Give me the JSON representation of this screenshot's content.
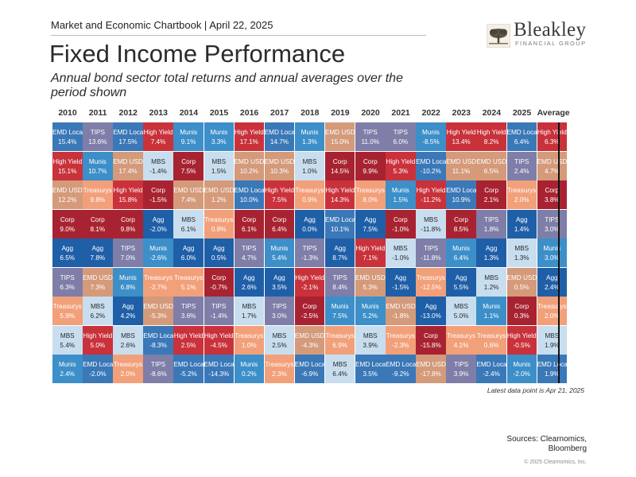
{
  "header": {
    "chartbook": "Market and Economic Chartbook | April 22, 2025",
    "title": "Fixed Income Performance",
    "subtitle": "Annual bond sector total returns and annual averages over the period shown"
  },
  "logo": {
    "name": "Bleakley",
    "tagline": "FINANCIAL GROUP"
  },
  "colors": {
    "EMD Local": "#3a78b8",
    "TIPS": "#7e7ea8",
    "High Yield": "#c9323b",
    "Munis": "#3c8fc8",
    "Corp": "#a82331",
    "MBS": "#c8deef",
    "EMD USD": "#d49a7a",
    "Treasurys": "#f2a07a",
    "Agg": "#1f5fa8"
  },
  "chart_data": {
    "type": "table",
    "title": "Fixed Income Performance",
    "columns": [
      "2010",
      "2011",
      "2012",
      "2013",
      "2014",
      "2015",
      "2016",
      "2017",
      "2018",
      "2019",
      "2020",
      "2021",
      "2022",
      "2023",
      "2024",
      "2025",
      "Average"
    ],
    "ranked_returns": [
      [
        [
          "EMD Local",
          "15.4%"
        ],
        [
          "High Yield",
          "15.1%"
        ],
        [
          "EMD USD",
          "12.2%"
        ],
        [
          "Corp",
          "9.0%"
        ],
        [
          "Agg",
          "6.5%"
        ],
        [
          "TIPS",
          "6.3%"
        ],
        [
          "Treasurys",
          "5.9%"
        ],
        [
          "MBS",
          "5.4%"
        ],
        [
          "Munis",
          "2.4%"
        ]
      ],
      [
        [
          "TIPS",
          "13.6%"
        ],
        [
          "Munis",
          "10.7%"
        ],
        [
          "Treasurys",
          "9.8%"
        ],
        [
          "Corp",
          "8.1%"
        ],
        [
          "Agg",
          "7.8%"
        ],
        [
          "EMD USD",
          "7.3%"
        ],
        [
          "MBS",
          "6.2%"
        ],
        [
          "High Yield",
          "5.0%"
        ],
        [
          "EMD Local",
          "-2.0%"
        ]
      ],
      [
        [
          "EMD Local",
          "17.5%"
        ],
        [
          "EMD USD",
          "17.4%"
        ],
        [
          "High Yield",
          "15.8%"
        ],
        [
          "Corp",
          "9.8%"
        ],
        [
          "TIPS",
          "7.0%"
        ],
        [
          "Munis",
          "6.8%"
        ],
        [
          "Agg",
          "4.2%"
        ],
        [
          "MBS",
          "2.6%"
        ],
        [
          "Treasurys",
          "2.0%"
        ]
      ],
      [
        [
          "High Yield",
          "7.4%"
        ],
        [
          "MBS",
          "-1.4%"
        ],
        [
          "Corp",
          "-1.5%"
        ],
        [
          "Agg",
          "-2.0%"
        ],
        [
          "Munis",
          "-2.6%"
        ],
        [
          "Treasurys",
          "-2.7%"
        ],
        [
          "EMD USD",
          "-5.3%"
        ],
        [
          "EMD Local",
          "-8.3%"
        ],
        [
          "TIPS",
          "-8.6%"
        ]
      ],
      [
        [
          "Munis",
          "9.1%"
        ],
        [
          "Corp",
          "7.5%"
        ],
        [
          "EMD USD",
          "7.4%"
        ],
        [
          "MBS",
          "6.1%"
        ],
        [
          "Agg",
          "6.0%"
        ],
        [
          "Treasurys",
          "5.1%"
        ],
        [
          "TIPS",
          "3.6%"
        ],
        [
          "High Yield",
          "2.5%"
        ],
        [
          "EMD Local",
          "-5.2%"
        ]
      ],
      [
        [
          "Munis",
          "3.3%"
        ],
        [
          "MBS",
          "1.5%"
        ],
        [
          "EMD USD",
          "1.2%"
        ],
        [
          "Treasurys",
          "0.8%"
        ],
        [
          "Agg",
          "0.5%"
        ],
        [
          "Corp",
          "-0.7%"
        ],
        [
          "TIPS",
          "-1.4%"
        ],
        [
          "High Yield",
          "-4.5%"
        ],
        [
          "EMD Local",
          "-14.3%"
        ]
      ],
      [
        [
          "High Yield",
          "17.1%"
        ],
        [
          "EMD USD",
          "10.2%"
        ],
        [
          "EMD Local",
          "10.0%"
        ],
        [
          "Corp",
          "6.1%"
        ],
        [
          "TIPS",
          "4.7%"
        ],
        [
          "Agg",
          "2.6%"
        ],
        [
          "MBS",
          "1.7%"
        ],
        [
          "Treasurys",
          "1.0%"
        ],
        [
          "Munis",
          "0.2%"
        ]
      ],
      [
        [
          "EMD Local",
          "14.7%"
        ],
        [
          "EMD USD",
          "10.3%"
        ],
        [
          "High Yield",
          "7.5%"
        ],
        [
          "Corp",
          "6.4%"
        ],
        [
          "Munis",
          "5.4%"
        ],
        [
          "Agg",
          "3.5%"
        ],
        [
          "TIPS",
          "3.0%"
        ],
        [
          "MBS",
          "2.5%"
        ],
        [
          "Treasurys",
          "2.3%"
        ]
      ],
      [
        [
          "Munis",
          "1.3%"
        ],
        [
          "MBS",
          "1.0%"
        ],
        [
          "Treasurys",
          "0.9%"
        ],
        [
          "Agg",
          "0.0%"
        ],
        [
          "TIPS",
          "-1.3%"
        ],
        [
          "High Yield",
          "-2.1%"
        ],
        [
          "Corp",
          "-2.5%"
        ],
        [
          "EMD USD",
          "-4.3%"
        ],
        [
          "EMD Local",
          "-6.9%"
        ]
      ],
      [
        [
          "EMD USD",
          "15.0%"
        ],
        [
          "Corp",
          "14.5%"
        ],
        [
          "High Yield",
          "14.3%"
        ],
        [
          "EMD Local",
          "10.1%"
        ],
        [
          "Agg",
          "8.7%"
        ],
        [
          "TIPS",
          "8.4%"
        ],
        [
          "Munis",
          "7.5%"
        ],
        [
          "Treasurys",
          "6.9%"
        ],
        [
          "MBS",
          "6.4%"
        ]
      ],
      [
        [
          "TIPS",
          "11.0%"
        ],
        [
          "Corp",
          "9.9%"
        ],
        [
          "Treasurys",
          "8.0%"
        ],
        [
          "Agg",
          "7.5%"
        ],
        [
          "High Yield",
          "7.1%"
        ],
        [
          "EMD USD",
          "5.3%"
        ],
        [
          "Munis",
          "5.2%"
        ],
        [
          "MBS",
          "3.9%"
        ],
        [
          "EMD Local",
          "3.5%"
        ]
      ],
      [
        [
          "TIPS",
          "6.0%"
        ],
        [
          "High Yield",
          "5.3%"
        ],
        [
          "Munis",
          "1.5%"
        ],
        [
          "Corp",
          "-1.0%"
        ],
        [
          "MBS",
          "-1.0%"
        ],
        [
          "Agg",
          "-1.5%"
        ],
        [
          "EMD USD",
          "-1.8%"
        ],
        [
          "Treasurys",
          "-2.3%"
        ],
        [
          "EMD Local",
          "-9.2%"
        ]
      ],
      [
        [
          "Munis",
          "-8.5%"
        ],
        [
          "EMD Local",
          "-10.2%"
        ],
        [
          "High Yield",
          "-11.2%"
        ],
        [
          "MBS",
          "-11.8%"
        ],
        [
          "TIPS",
          "-11.8%"
        ],
        [
          "Treasurys",
          "-12.5%"
        ],
        [
          "Agg",
          "-13.0%"
        ],
        [
          "Corp",
          "-15.8%"
        ],
        [
          "EMD USD",
          "-17.8%"
        ]
      ],
      [
        [
          "High Yield",
          "13.4%"
        ],
        [
          "EMD USD",
          "11.1%"
        ],
        [
          "EMD Local",
          "10.9%"
        ],
        [
          "Corp",
          "8.5%"
        ],
        [
          "Munis",
          "6.4%"
        ],
        [
          "Agg",
          "5.5%"
        ],
        [
          "MBS",
          "5.0%"
        ],
        [
          "Treasurys",
          "4.1%"
        ],
        [
          "TIPS",
          "3.9%"
        ]
      ],
      [
        [
          "High Yield",
          "8.2%"
        ],
        [
          "EMD USD",
          "6.5%"
        ],
        [
          "Corp",
          "2.1%"
        ],
        [
          "TIPS",
          "1.8%"
        ],
        [
          "Agg",
          "1.3%"
        ],
        [
          "MBS",
          "1.2%"
        ],
        [
          "Munis",
          "1.1%"
        ],
        [
          "Treasurys",
          "0.6%"
        ],
        [
          "EMD Local",
          "-2.4%"
        ]
      ],
      [
        [
          "EMD Local",
          "6.4%"
        ],
        [
          "TIPS",
          "2.4%"
        ],
        [
          "Treasurys",
          "2.0%"
        ],
        [
          "Agg",
          "1.4%"
        ],
        [
          "MBS",
          "1.3%"
        ],
        [
          "EMD USD",
          "0.5%"
        ],
        [
          "Corp",
          "0.3%"
        ],
        [
          "High Yield",
          "-0.5%"
        ],
        [
          "Munis",
          "-2.0%"
        ]
      ],
      [
        [
          "High Yield",
          "6.3%"
        ],
        [
          "EMD USD",
          "4.7%"
        ],
        [
          "Corp",
          "3.8%"
        ],
        [
          "TIPS",
          "3.0%"
        ],
        [
          "Munis",
          "3.0%"
        ],
        [
          "Agg",
          "2.4%"
        ],
        [
          "Treasurys",
          "2.0%"
        ],
        [
          "MBS",
          "1.9%"
        ],
        [
          "EMD Local",
          "1.9%"
        ]
      ]
    ]
  },
  "footer": {
    "note": "Latest data point is Apr 21, 2025",
    "sources_line1": "Sources: Clearnomics,",
    "sources_line2": "Bloomberg",
    "copyright": "© 2025 Clearnomics, Inc."
  }
}
